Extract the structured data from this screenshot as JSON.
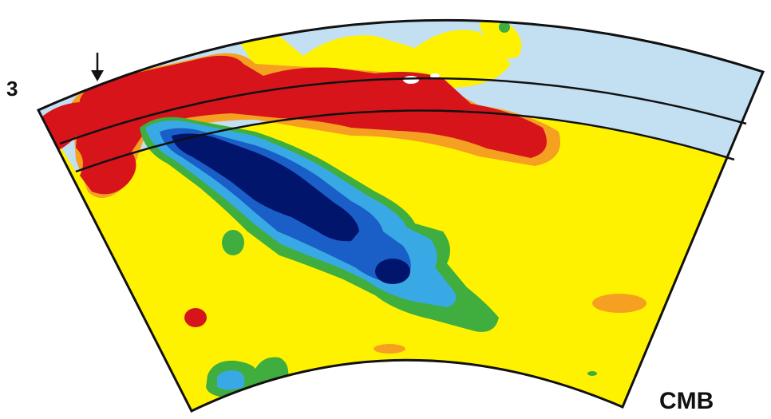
{
  "labels": {
    "panel_number": "3",
    "boundary": "CMB"
  },
  "colors": {
    "fast_strong": "#00156b",
    "fast_mid": "#1a5ec8",
    "fast_weak": "#39a9e6",
    "fast_slight": "#3fae3e",
    "neutral": "#fff200",
    "slow_slight": "#f6a021",
    "slow_strong": "#d6141a",
    "pale_upper": "#c3dff2",
    "outline": "#111111"
  },
  "icons": {
    "marker": "down-arrow-icon"
  }
}
